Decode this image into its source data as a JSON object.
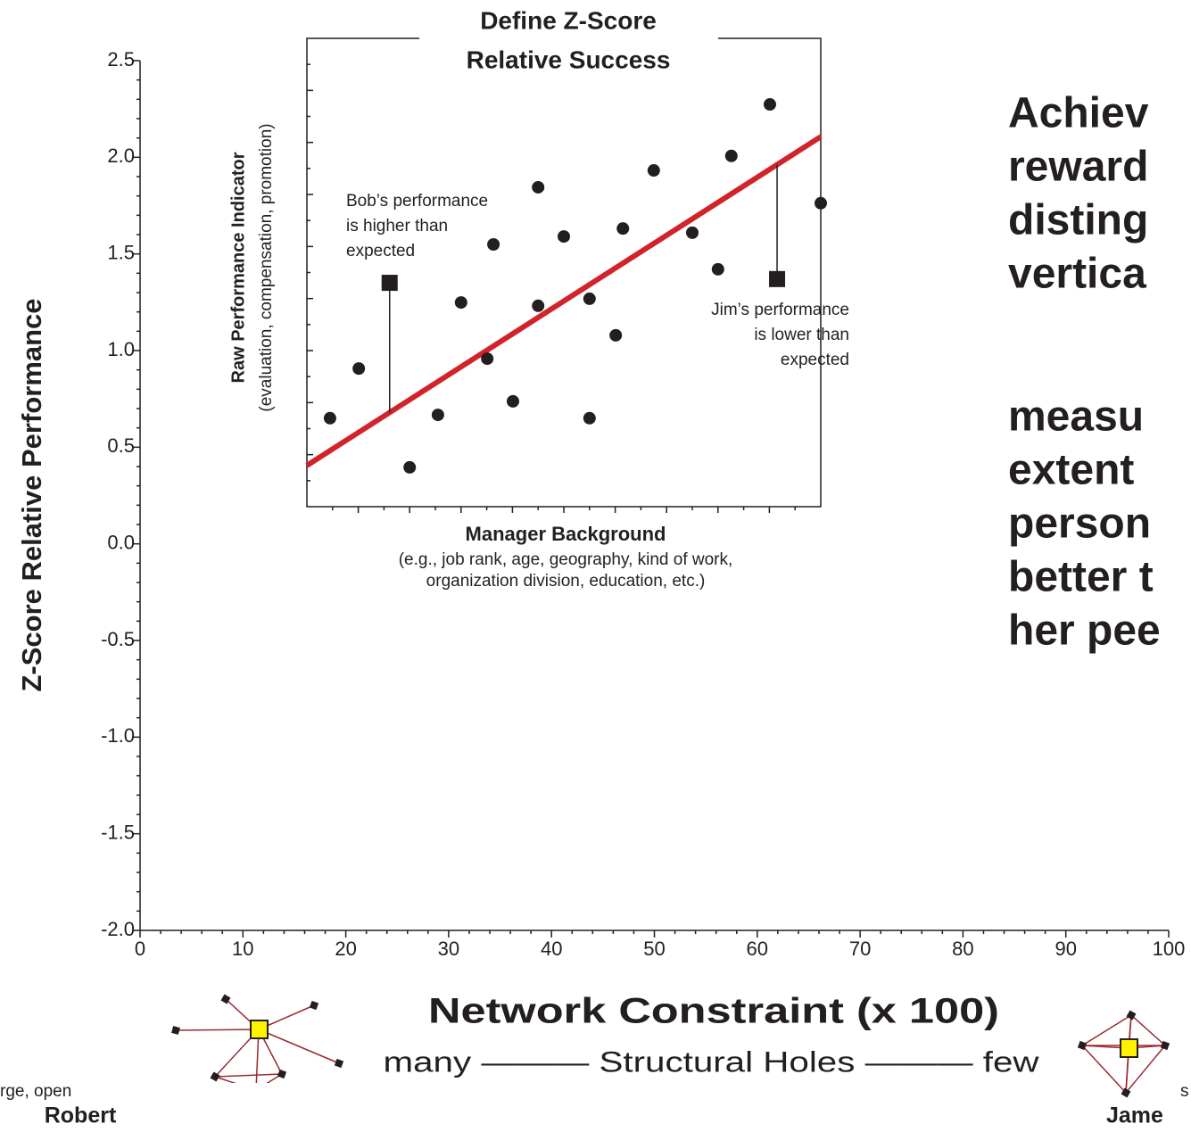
{
  "chart_data": [
    {
      "type": "scatter",
      "ylabel": "Z-Score Relative Performance",
      "xlabel": "Network Constraint (x 100)",
      "xsubtitle": "many ——— Structural Holes ——— few",
      "xlim": [
        0,
        100
      ],
      "ylim": [
        -2,
        2.5
      ],
      "xticks": [
        0,
        10,
        20,
        30,
        40,
        50,
        60,
        70,
        80,
        90,
        100
      ],
      "yticks": [
        2.5,
        {
          "value": 2,
          "label": "2.0"
        },
        1.5,
        {
          "value": 1,
          "label": "1.0"
        },
        0.5,
        {
          "value": 0,
          "label": "0.0"
        },
        -0.5,
        {
          "value": -1,
          "label": "-1.0"
        },
        -1.5,
        {
          "value": -2,
          "label": "-2.0"
        }
      ]
    },
    {
      "type": "scatter",
      "title": [
        "Define Z-Score",
        "Relative Success"
      ],
      "ylabel": "Raw Performance Indicator",
      "ylabel_note": "(evaluation, compensation, promotion)",
      "xlabel": "Manager Background",
      "xlabel_note": [
        "(e.g., job rank, age, geography, kind of work,",
        "organization division, education, etc.)"
      ],
      "xlim": [
        0,
        100
      ],
      "ylim": [
        0,
        100
      ],
      "color": "#231f20",
      "x": [
        4.5,
        10.1,
        20.0,
        25.5,
        30.0,
        35.1,
        36.3,
        40.1,
        45.0,
        45.0,
        50.0,
        55.0,
        55.0,
        60.1,
        61.5,
        67.5,
        75.0,
        80.0,
        82.6,
        90.1,
        100
      ],
      "values": [
        18.9,
        29.5,
        8.4,
        19.6,
        43.6,
        31.6,
        56.0,
        22.5,
        68.2,
        42.9,
        57.7,
        44.4,
        18.9,
        36.6,
        59.4,
        71.8,
        58.5,
        50.7,
        74.9,
        85.9,
        64.8
      ],
      "fit_line": {
        "color": "#d2232a",
        "x": [
          0,
          100
        ],
        "y": [
          8.8,
          79
        ]
      },
      "markers": [
        {
          "x": 16.1,
          "y": 47.8,
          "label": [
            "Bob’s performance",
            "is higher than",
            "expected"
          ]
        },
        {
          "x": 91.5,
          "y": 48.6,
          "label": [
            "Jim’s performance",
            "is lower than",
            "expected"
          ]
        }
      ]
    }
  ],
  "side_text": {
    "lines_a": [
      "Achiev",
      "reward",
      "disting",
      "vertica"
    ],
    "lines_b": [
      "measu",
      "extent",
      "person",
      "better t",
      "her pee"
    ]
  },
  "networks": {
    "left_note": "rge, open",
    "left_name": "Robert",
    "right_note": "s",
    "right_name": "Jame"
  }
}
